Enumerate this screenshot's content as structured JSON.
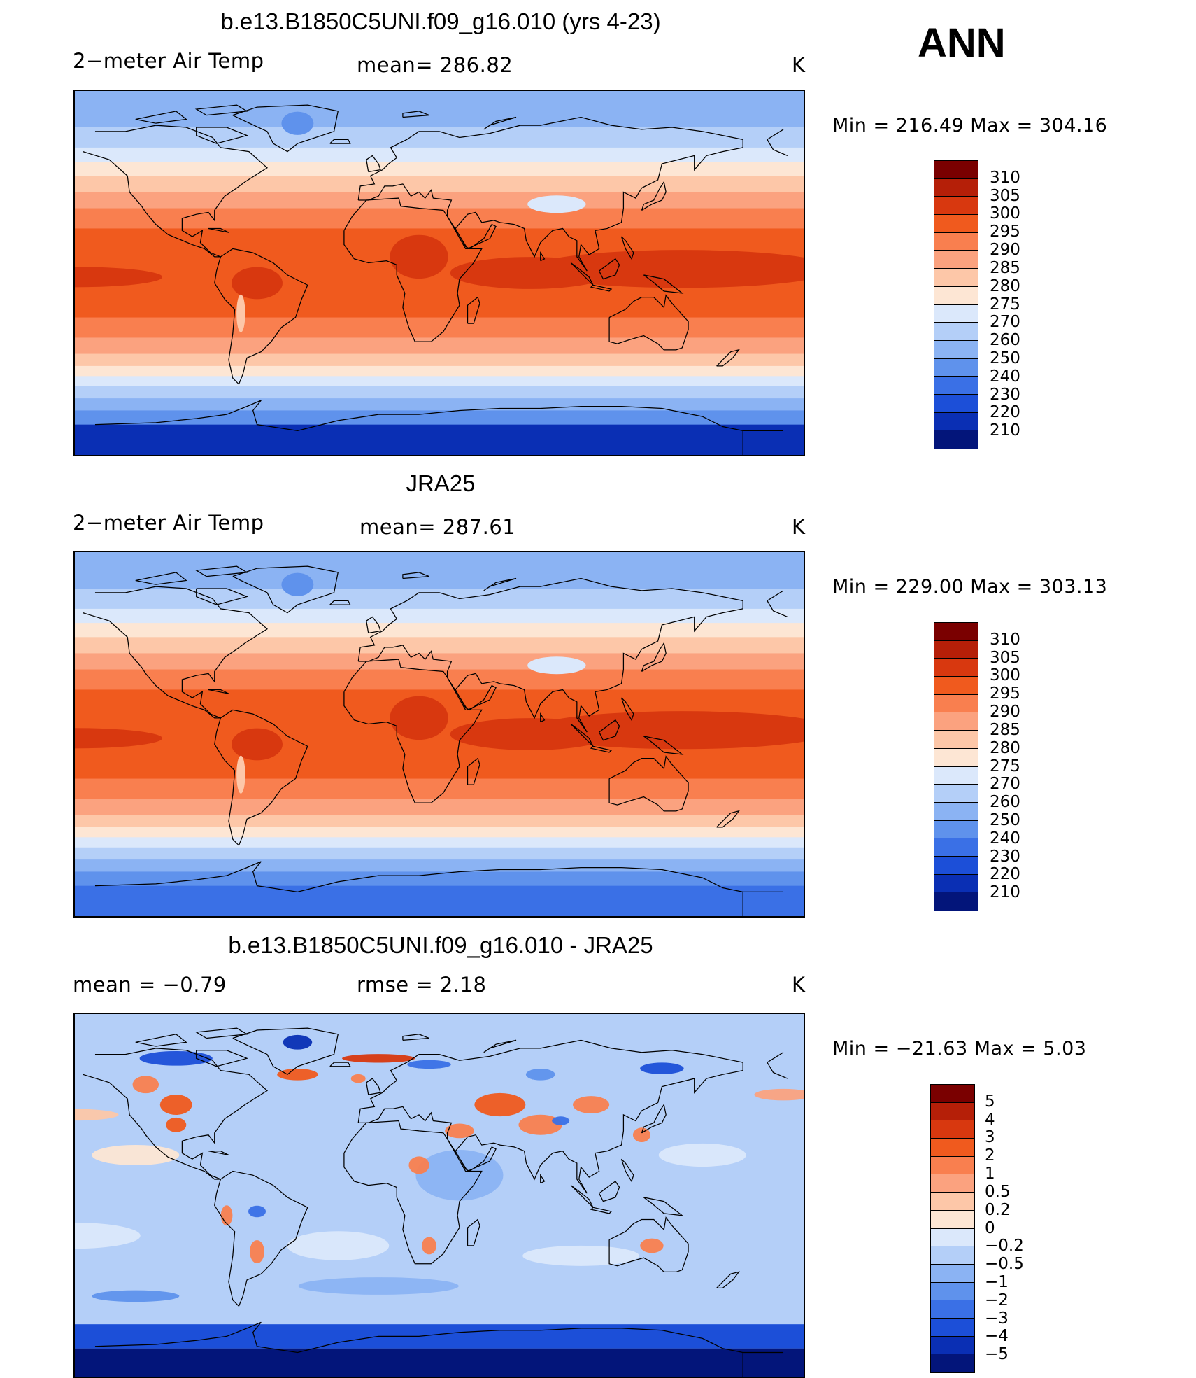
{
  "season": "ANN",
  "panels": [
    {
      "title": "b.e13.B1850C5UNI.f09_g16.010 (yrs 4-23)",
      "left_label": "2−meter Air Temp",
      "center_label": "mean=  286.82",
      "units": "K",
      "minmax": "Min  =  216.49  Max  =  304.16",
      "map_kind": "model"
    },
    {
      "title": "JRA25",
      "left_label": "2−meter Air Temp",
      "center_label": "mean=  287.61",
      "units": "K",
      "minmax": "Min  =  229.00  Max  =  303.13",
      "map_kind": "obs"
    },
    {
      "title": "b.e13.B1850C5UNI.f09_g16.010 - JRA25",
      "left_label": "mean  =     −0.79",
      "center_label": "rmse  =     2.18",
      "units": "K",
      "minmax": "Min  =  −21.63  Max  =      5.03",
      "map_kind": "diff"
    }
  ],
  "colorbars": {
    "temperature": {
      "labels": [
        "310",
        "305",
        "300",
        "295",
        "290",
        "285",
        "280",
        "275",
        "270",
        "260",
        "250",
        "240",
        "230",
        "220",
        "210"
      ],
      "colors": [
        "#7a0000",
        "#b51f08",
        "#d8380f",
        "#f05a1e",
        "#f97f4f",
        "#fba27f",
        "#fdc7a8",
        "#fde6d4",
        "#dbe8fb",
        "#b4cff8",
        "#8bb3f3",
        "#5f92ec",
        "#3a70e6",
        "#1c4fd8",
        "#0a2fb4",
        "#03157a"
      ]
    },
    "difference": {
      "labels": [
        "5",
        "4",
        "3",
        "2",
        "1",
        "0.5",
        "0.2",
        "0",
        "−0.2",
        "−0.5",
        "−1",
        "−2",
        "−3",
        "−4",
        "−5"
      ],
      "colors": [
        "#7a0000",
        "#b51f08",
        "#d8380f",
        "#f05a1e",
        "#f97f4f",
        "#fba27f",
        "#fdc7a8",
        "#fde6d4",
        "#dbe8fb",
        "#b4cff8",
        "#8bb3f3",
        "#5f92ec",
        "#3a70e6",
        "#1c4fd8",
        "#0a2fb4",
        "#03157a"
      ]
    }
  }
}
